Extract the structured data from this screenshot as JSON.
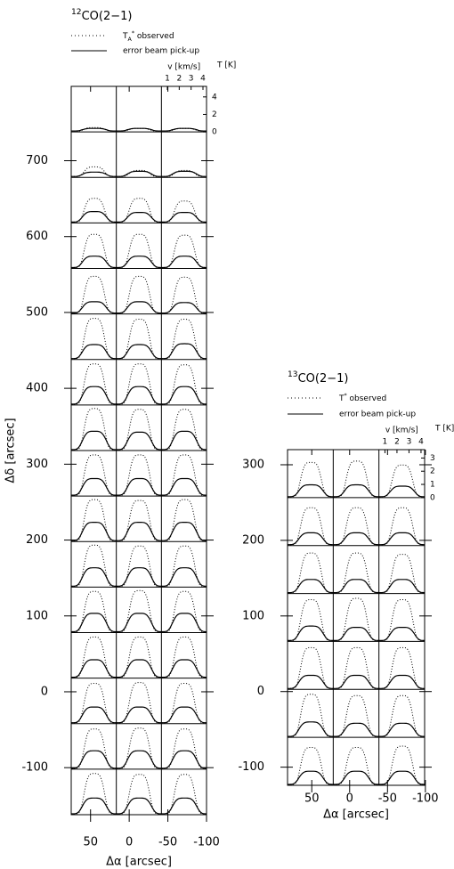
{
  "chart_data": [
    {
      "type": "spectra-grid",
      "title": "12CO(2−1)",
      "xlabel": "Δα [arcsec]",
      "ylabel": "Δδ [arcsec]",
      "xlim": [
        75,
        -100
      ],
      "xticks": [
        50,
        0,
        -50,
        -100
      ],
      "ylim": [
        -162,
        798
      ],
      "yticks": [
        700,
        600,
        500,
        400,
        300,
        200,
        100,
        0,
        -100
      ],
      "series": [
        {
          "name": "TA* observed",
          "style": "dotted",
          "color": "#000",
          "values": [
            [
              0.4,
              0.3,
              0.3
            ],
            [
              1.1,
              0.7,
              0.7
            ],
            [
              2.7,
              2.7,
              2.4
            ],
            [
              3.8,
              3.8,
              3.7
            ],
            [
              4.2,
              4.2,
              4.1
            ],
            [
              4.6,
              4.5,
              4.5
            ],
            [
              4.6,
              4.6,
              4.5
            ],
            [
              4.7,
              4.6,
              4.6
            ],
            [
              4.6,
              4.6,
              4.6
            ],
            [
              4.7,
              4.6,
              4.7
            ],
            [
              4.7,
              4.6,
              4.6
            ],
            [
              4.6,
              4.7,
              4.6
            ],
            [
              4.6,
              4.6,
              4.6
            ],
            [
              4.5,
              4.6,
              4.5
            ],
            [
              4.5,
              4.6,
              4.5
            ],
            [
              4.6,
              4.5,
              4.5
            ]
          ]
        },
        {
          "name": "error beam pick-up",
          "style": "solid",
          "color": "#000",
          "values": [
            [
              0.3,
              0.3,
              0.3
            ],
            [
              0.5,
              0.6,
              0.6
            ],
            [
              1.2,
              1.1,
              1.1
            ],
            [
              1.3,
              1.3,
              1.3
            ],
            [
              1.3,
              1.3,
              1.2
            ],
            [
              1.6,
              1.6,
              1.7
            ],
            [
              2.0,
              2.0,
              2.0
            ],
            [
              2.1,
              2.0,
              2.1
            ],
            [
              1.9,
              1.9,
              1.9
            ],
            [
              2.1,
              2.1,
              2.1
            ],
            [
              2.1,
              2.1,
              2.1
            ],
            [
              2.1,
              2.1,
              2.1
            ],
            [
              2.0,
              2.0,
              2.0
            ],
            [
              1.8,
              1.8,
              1.8
            ],
            [
              2.0,
              2.0,
              2.0
            ],
            [
              1.8,
              1.8,
              1.8
            ]
          ]
        }
      ],
      "inset": {
        "xlabel": "v [km/s]",
        "ylabel": "T [K]",
        "xlim": [
          0.5,
          4.3
        ],
        "xticks": [
          1,
          2,
          3,
          4
        ],
        "ylim": [
          0,
          5
        ],
        "yticks": [
          0,
          2,
          4
        ]
      }
    },
    {
      "type": "spectra-grid",
      "title": "13CO(2−1)",
      "xlabel": "Δα [arcsec]",
      "xlim": [
        82,
        -99
      ],
      "xticks": [
        50,
        0,
        -50,
        -100
      ],
      "ylim": [
        -124,
        320
      ],
      "yticks": [
        300,
        200,
        100,
        0,
        -100
      ],
      "series": [
        {
          "name": "T* observed",
          "style": "dotted",
          "color": "#000",
          "values": [
            [
              2.6,
              2.7,
              2.4
            ],
            [
              2.8,
              2.8,
              2.8
            ],
            [
              3.0,
              3.0,
              2.9
            ],
            [
              3.1,
              3.2,
              3.1
            ],
            [
              3.1,
              3.1,
              3.1
            ],
            [
              3.2,
              3.1,
              3.1
            ],
            [
              2.8,
              2.8,
              2.9
            ]
          ]
        },
        {
          "name": "error beam pick-up",
          "style": "solid",
          "color": "#000",
          "values": [
            [
              0.9,
              0.9,
              0.8
            ],
            [
              0.9,
              0.9,
              0.9
            ],
            [
              1.0,
              1.0,
              1.0
            ],
            [
              1.1,
              1.0,
              1.0
            ],
            [
              1.0,
              1.0,
              1.0
            ],
            [
              1.1,
              1.0,
              1.0
            ],
            [
              1.0,
              1.0,
              1.0
            ]
          ]
        }
      ],
      "inset": {
        "xlabel": "v [km/s]",
        "ylabel": "T [K]",
        "xlim": [
          0.5,
          4.3
        ],
        "xticks": [
          1,
          2,
          3,
          4
        ],
        "ylim": [
          0,
          3.5
        ],
        "yticks": [
          0,
          1,
          2,
          3
        ]
      }
    }
  ]
}
